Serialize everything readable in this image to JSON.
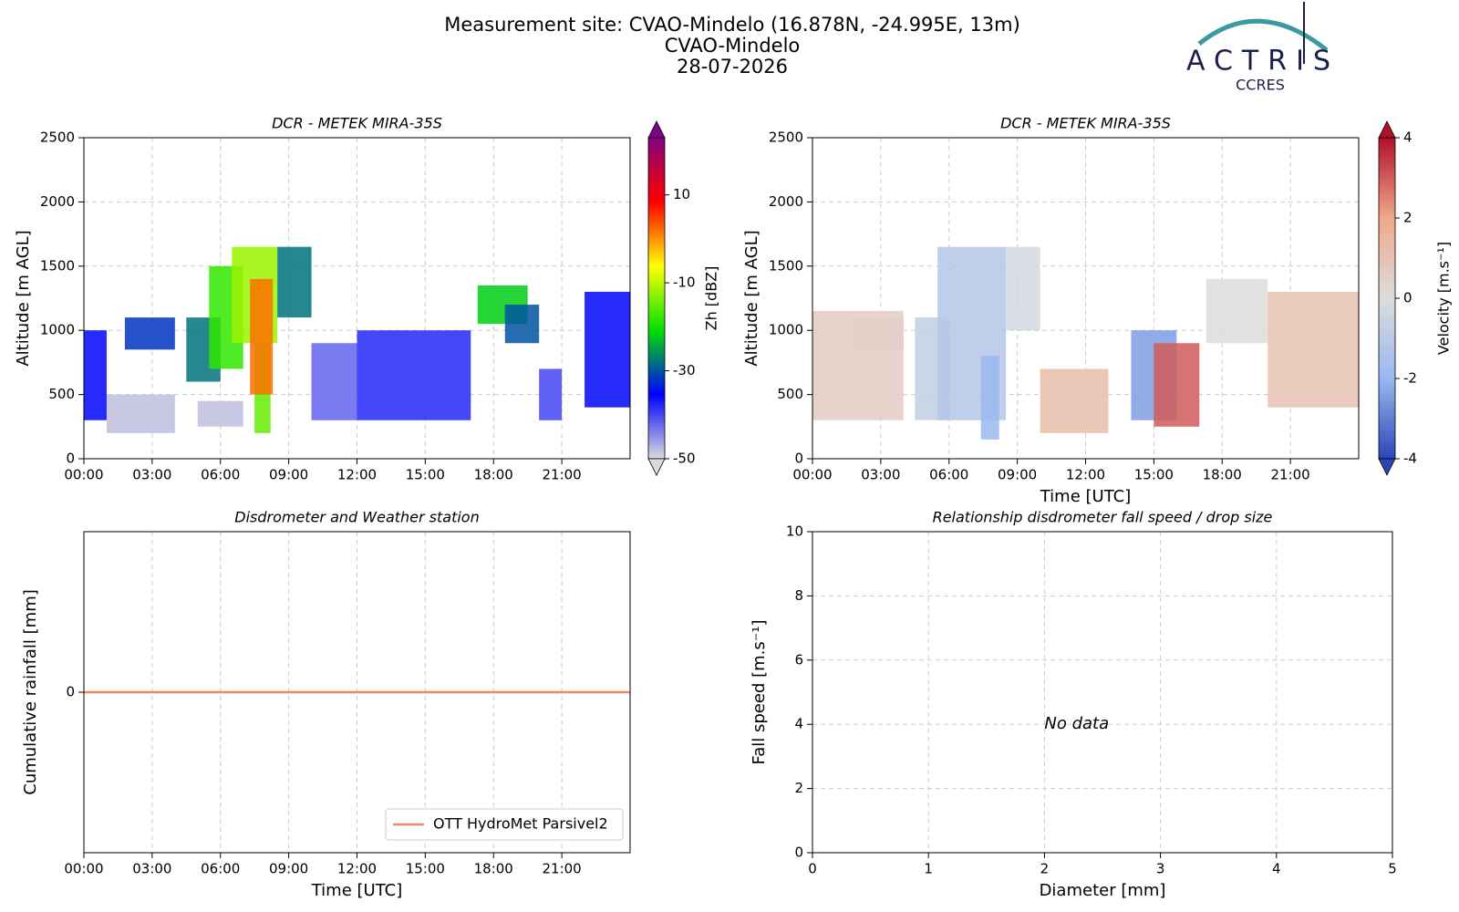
{
  "header": {
    "title": [
      "Measurement site: CVAO-Mindelo (16.878N, -24.995E, 13m)",
      "CVAO-Mindelo",
      "28-07-2026"
    ]
  },
  "logo": {
    "name": "ACTRIS",
    "sub": "CCRES"
  },
  "chart_data": [
    {
      "type": "heatmap",
      "title": "DCR - METEK MIRA-35S",
      "ylabel": "Altitude [m AGL]",
      "xlim": [
        0,
        24
      ],
      "xticks": [
        {
          "value": 0,
          "label": "00:00"
        },
        {
          "value": 3,
          "label": "03:00"
        },
        {
          "value": 6,
          "label": "06:00"
        },
        {
          "value": 9,
          "label": "09:00"
        },
        {
          "value": 12,
          "label": "12:00"
        },
        {
          "value": 15,
          "label": "15:00"
        },
        {
          "value": 18,
          "label": "18:00"
        },
        {
          "value": 21,
          "label": "21:00"
        }
      ],
      "ylim": [
        0,
        2500
      ],
      "yticks": [
        0,
        500,
        1000,
        1500,
        2000,
        2500
      ],
      "grid": true,
      "colorbar_label": "Zh [dBZ]",
      "clim": [
        -50,
        23
      ],
      "cticks": [
        -50,
        -30,
        -10,
        10
      ],
      "colormap": [
        "#dcdcdc",
        "#0000ff",
        "#00e000",
        "#ffff00",
        "#ff0000",
        "#800080"
      ],
      "cells": [
        [
          1,
          4,
          200,
          500,
          -48
        ],
        [
          5,
          7,
          250,
          450,
          -48
        ],
        [
          0,
          1,
          300,
          1000,
          -35
        ],
        [
          1.8,
          4,
          850,
          1100,
          -32
        ],
        [
          4.5,
          6,
          600,
          1100,
          -28
        ],
        [
          5.5,
          7,
          700,
          1500,
          -18
        ],
        [
          6.5,
          8.5,
          900,
          1650,
          -12
        ],
        [
          8.5,
          10,
          1100,
          1650,
          -28
        ],
        [
          7.5,
          8.2,
          200,
          900,
          -15
        ],
        [
          7.3,
          8.3,
          500,
          1400,
          2
        ],
        [
          10,
          12,
          300,
          900,
          -42
        ],
        [
          12,
          17,
          300,
          1000,
          -38
        ],
        [
          17.3,
          19.5,
          1050,
          1350,
          -22
        ],
        [
          18.5,
          20,
          900,
          1200,
          -30
        ],
        [
          20,
          21,
          300,
          700,
          -40
        ],
        [
          22,
          24,
          400,
          1300,
          -35
        ]
      ]
    },
    {
      "type": "heatmap",
      "title": "DCR - METEK MIRA-35S",
      "ylabel": "Altitude [m AGL]",
      "xlabel": "Time [UTC]",
      "xlim": [
        0,
        24
      ],
      "xticks": [
        {
          "value": 0,
          "label": "00:00"
        },
        {
          "value": 3,
          "label": "03:00"
        },
        {
          "value": 6,
          "label": "06:00"
        },
        {
          "value": 9,
          "label": "09:00"
        },
        {
          "value": 12,
          "label": "12:00"
        },
        {
          "value": 15,
          "label": "15:00"
        },
        {
          "value": 18,
          "label": "18:00"
        },
        {
          "value": 21,
          "label": "21:00"
        }
      ],
      "ylim": [
        0,
        2500
      ],
      "yticks": [
        0,
        500,
        1000,
        1500,
        2000,
        2500
      ],
      "grid": true,
      "colorbar_label": "Velocity [m.s⁻¹]",
      "clim": [
        -4,
        4
      ],
      "cticks": [
        -4,
        -2,
        0,
        2,
        4
      ],
      "colormap": [
        "#2a46b6",
        "#9ab8f0",
        "#dcdcdc",
        "#f0a88a",
        "#b0102b"
      ],
      "cells": [
        [
          0,
          4,
          300,
          1150,
          0.6
        ],
        [
          1.8,
          4,
          850,
          1100,
          0.5
        ],
        [
          4.5,
          6,
          300,
          1100,
          -0.8
        ],
        [
          5.5,
          8.5,
          300,
          1650,
          -1.2
        ],
        [
          7.4,
          8.2,
          150,
          800,
          -2
        ],
        [
          8.5,
          10,
          1000,
          1650,
          -0.3
        ],
        [
          10,
          13,
          200,
          700,
          1.2
        ],
        [
          14,
          16,
          300,
          1000,
          -2.5
        ],
        [
          15,
          17,
          250,
          900,
          3
        ],
        [
          17.3,
          20,
          900,
          1400,
          0
        ],
        [
          20,
          24,
          400,
          1300,
          1
        ]
      ]
    },
    {
      "type": "line",
      "title": "Disdrometer and Weather station",
      "ylabel": "Cumulative rainfall [mm]",
      "xlabel": "Time [UTC]",
      "xlim": [
        0,
        24
      ],
      "xticks": [
        {
          "value": 0,
          "label": "00:00"
        },
        {
          "value": 3,
          "label": "03:00"
        },
        {
          "value": 6,
          "label": "06:00"
        },
        {
          "value": 9,
          "label": "09:00"
        },
        {
          "value": 12,
          "label": "12:00"
        },
        {
          "value": 15,
          "label": "15:00"
        },
        {
          "value": 18,
          "label": "18:00"
        },
        {
          "value": 21,
          "label": "21:00"
        }
      ],
      "ylim": [
        -1,
        1
      ],
      "yticks": [
        0
      ],
      "grid": true,
      "legend": "lower right",
      "x": [
        0,
        24
      ],
      "series": [
        {
          "name": "OTT HydroMet Parsivel2",
          "color": "#ee8a5e",
          "values": [
            0,
            0
          ]
        }
      ]
    },
    {
      "type": "scatter",
      "title": "Relationship disdrometer fall speed / drop size",
      "ylabel": "Fall speed [m.s⁻¹]",
      "xlabel": "Diameter [mm]",
      "xlim": [
        0,
        5
      ],
      "xticks": [
        0,
        1,
        2,
        3,
        4,
        5
      ],
      "ylim": [
        0,
        10
      ],
      "yticks": [
        0,
        2,
        4,
        6,
        8,
        10
      ],
      "grid": true,
      "annotation": "No data",
      "x": [],
      "values": []
    }
  ]
}
